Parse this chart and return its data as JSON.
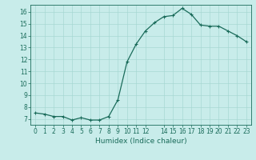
{
  "x": [
    0,
    1,
    2,
    3,
    4,
    5,
    6,
    7,
    8,
    9,
    10,
    11,
    12,
    13,
    14,
    15,
    16,
    17,
    18,
    19,
    20,
    21,
    22,
    23
  ],
  "y": [
    7.5,
    7.4,
    7.2,
    7.2,
    6.9,
    7.1,
    6.9,
    6.9,
    7.2,
    8.6,
    11.8,
    13.3,
    14.4,
    15.1,
    15.6,
    15.7,
    16.3,
    15.8,
    14.9,
    14.8,
    14.8,
    14.4,
    14.0,
    13.5
  ],
  "line_color": "#1a6b5a",
  "marker": "+",
  "marker_size": 3.0,
  "marker_lw": 0.8,
  "xlabel": "Humidex (Indice chaleur)",
  "bg_color": "#c8ecea",
  "grid_color": "#a8d8d4",
  "xlim": [
    -0.5,
    23.5
  ],
  "ylim": [
    6.5,
    16.6
  ],
  "yticks": [
    7,
    8,
    9,
    10,
    11,
    12,
    13,
    14,
    15,
    16
  ],
  "xticks": [
    0,
    1,
    2,
    3,
    4,
    5,
    6,
    7,
    8,
    9,
    10,
    11,
    12,
    14,
    15,
    16,
    17,
    18,
    19,
    20,
    21,
    22,
    23
  ],
  "xtick_labels": [
    "0",
    "1",
    "2",
    "3",
    "4",
    "5",
    "6",
    "7",
    "8",
    "9",
    "10",
    "11",
    "12",
    "14",
    "15",
    "16",
    "17",
    "18",
    "19",
    "20",
    "21",
    "22",
    "23"
  ],
  "tick_color": "#1a6b5a",
  "spine_color": "#1a6b5a",
  "label_fontsize": 6.5,
  "tick_fontsize": 5.5,
  "linewidth": 0.9
}
